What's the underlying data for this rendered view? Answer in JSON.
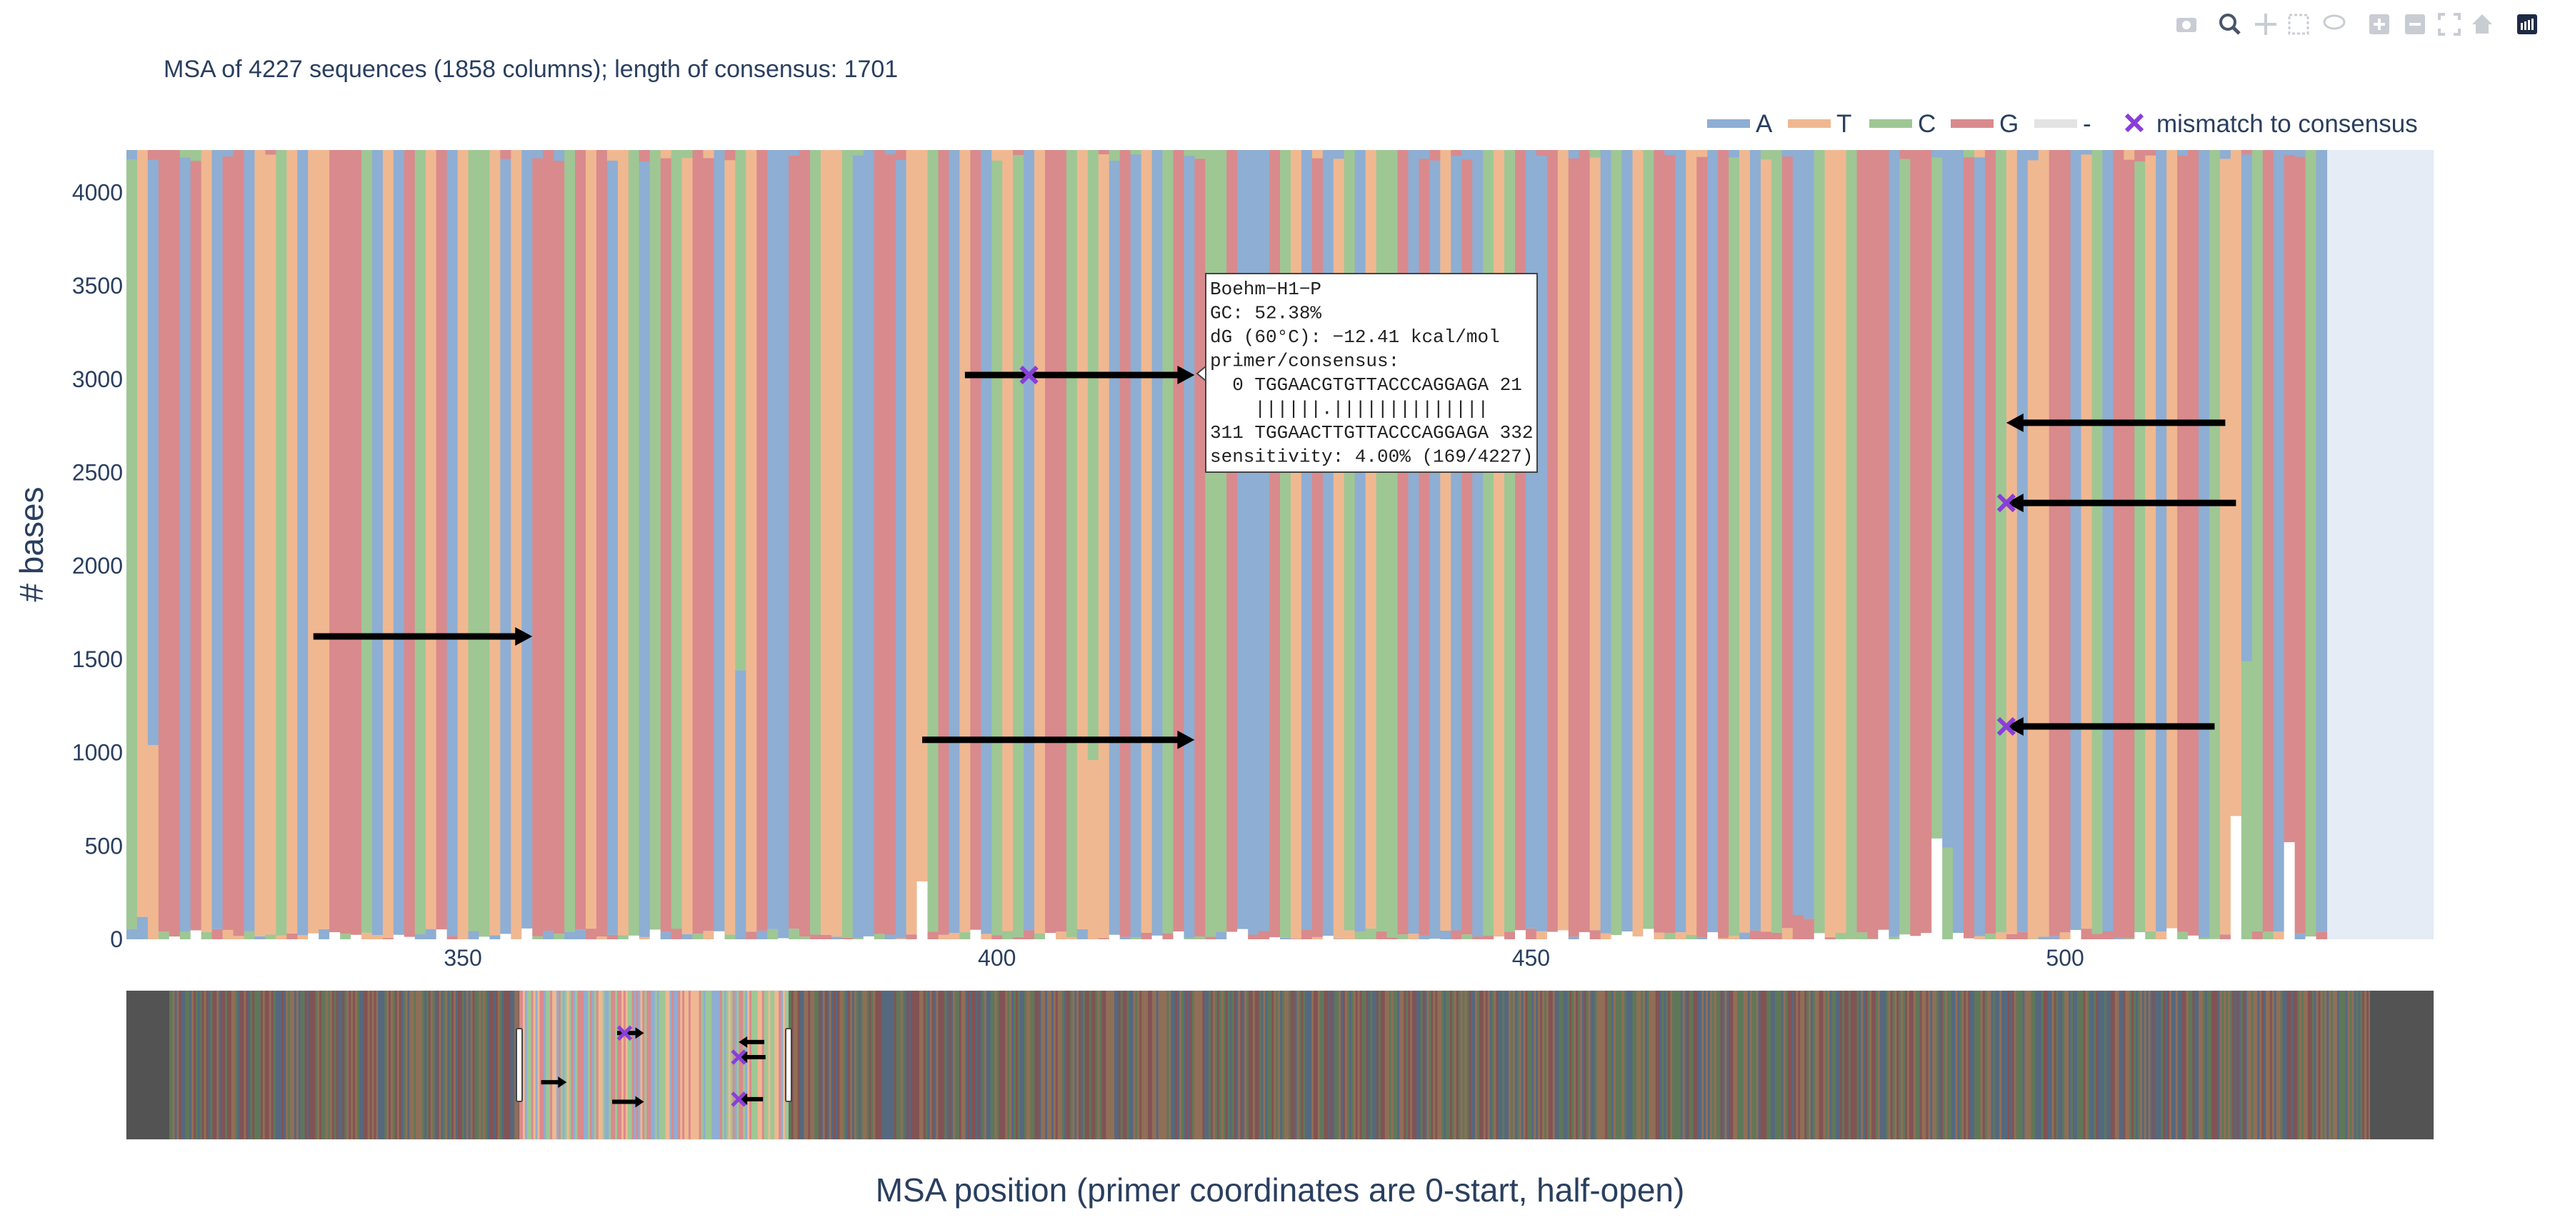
{
  "modebar": {
    "icons": [
      "camera-icon",
      "zoom-icon",
      "pan-icon",
      "box-select-icon",
      "lasso-icon",
      "zoom-in-icon",
      "zoom-out-icon",
      "autoscale-icon",
      "reset-axes-icon",
      "plotly-logo-icon"
    ]
  },
  "chart_data": {
    "type": "bar",
    "stacked": true,
    "title": "MSA of 4227 sequences (1858 columns); length of consensus: 1701",
    "xlabel": "MSA position (primer coordinates are 0-start, half-open)",
    "ylabel": "# bases",
    "xlim": [
      318.5,
      534.5
    ],
    "ylim": [
      0,
      4227
    ],
    "xticks": [
      350,
      400,
      450,
      500
    ],
    "yticks": [
      0,
      500,
      1000,
      1500,
      2000,
      2500,
      3000,
      3500,
      4000
    ],
    "total_sequences": 4227,
    "legend": {
      "position": "top-right",
      "orientation": "horizontal",
      "entries": [
        {
          "name": "A",
          "color": "#8eaed3",
          "symbol": "line"
        },
        {
          "name": "T",
          "color": "#f0b891",
          "symbol": "line"
        },
        {
          "name": "C",
          "color": "#9ec794",
          "symbol": "line"
        },
        {
          "name": "G",
          "color": "#d98a8d",
          "symbol": "line"
        },
        {
          "name": "-",
          "color": "#e3e3e3",
          "symbol": "line"
        },
        {
          "name": "mismatch to consensus",
          "color": "#8a3ed8",
          "symbol": "x"
        }
      ]
    },
    "columns_start": 319,
    "consensus_columns": "CTAGGAGTAGGATTCTATTGGGCATAGCTGATCCTATAGGGCGTGATCACGCTGGATCTGAAGGCTTCAAGGATTCGATGACTCATGGCTCTAGATACGAGCCGAAAGCTAGATCATCCGAGATAGACTCGAAGTGGTACATCGGATGAGCTATCGAACTTCGGGACGGCAAGAGCTATTGGATCAGGCTATGGACTTACGAGGCA",
    "minority_fraction": 0.01,
    "columns_with_notable_minority": [
      {
        "x": 320,
        "base": "C",
        "minor": "A",
        "minor_count": 120
      },
      {
        "x": 321,
        "base": "A",
        "minor": "T",
        "minor_count": 1040
      },
      {
        "x": 376,
        "base": "G",
        "minor": "A",
        "minor_count": 1440
      },
      {
        "x": 393,
        "base": "T",
        "minor": "T",
        "minor_count": 310
      },
      {
        "x": 409,
        "base": "T",
        "minor": "T",
        "minor_count": 960
      },
      {
        "x": 475,
        "base": "G",
        "minor": "G",
        "minor_count": 130
      },
      {
        "x": 476,
        "base": "G",
        "minor": "G",
        "minor_count": 110
      },
      {
        "x": 488,
        "base": "C",
        "minor": "C",
        "minor_count": 540
      },
      {
        "x": 489,
        "base": "C",
        "minor": "C",
        "minor_count": 490
      },
      {
        "x": 516,
        "base": "T",
        "minor": "T",
        "minor_count": 660
      },
      {
        "x": 517,
        "base": "C",
        "minor": "C",
        "minor_count": 1490
      },
      {
        "x": 521,
        "base": "G",
        "minor": "G",
        "minor_count": 520
      }
    ],
    "primers": [
      {
        "direction": "forward",
        "start": 336,
        "end": 356.5,
        "y": 1622,
        "mismatches": []
      },
      {
        "direction": "forward",
        "start": 393,
        "end": 418.5,
        "y": 1068,
        "mismatches": []
      },
      {
        "direction": "forward",
        "start": 397,
        "end": 418.5,
        "y": 3022,
        "mismatches": [
          403
        ]
      },
      {
        "direction": "reverse",
        "start": 494.5,
        "end": 515,
        "y": 2766,
        "mismatches": []
      },
      {
        "direction": "reverse",
        "start": 494.5,
        "end": 516,
        "y": 2337,
        "mismatches": [
          494.5
        ]
      },
      {
        "direction": "reverse",
        "start": 494.5,
        "end": 514,
        "y": 1140,
        "mismatches": [
          494.5
        ]
      }
    ],
    "hover": {
      "lines": [
        "Boehm−H1−P",
        "GC: 52.38%",
        "dG (60°C): −12.41 kcal/mol",
        "primer/consensus:",
        "  0 TGGAACGTGTTACCCAGGAGA 21",
        "    ||||||.||||||||||||||",
        "311 TGGAACTTGTTACCCAGGAGA 332",
        "sensitivity: 4.00% (169/4227)"
      ]
    },
    "rangeslider": {
      "full_range": [
        1,
        1858
      ],
      "selected_range": [
        319,
        534
      ]
    }
  }
}
